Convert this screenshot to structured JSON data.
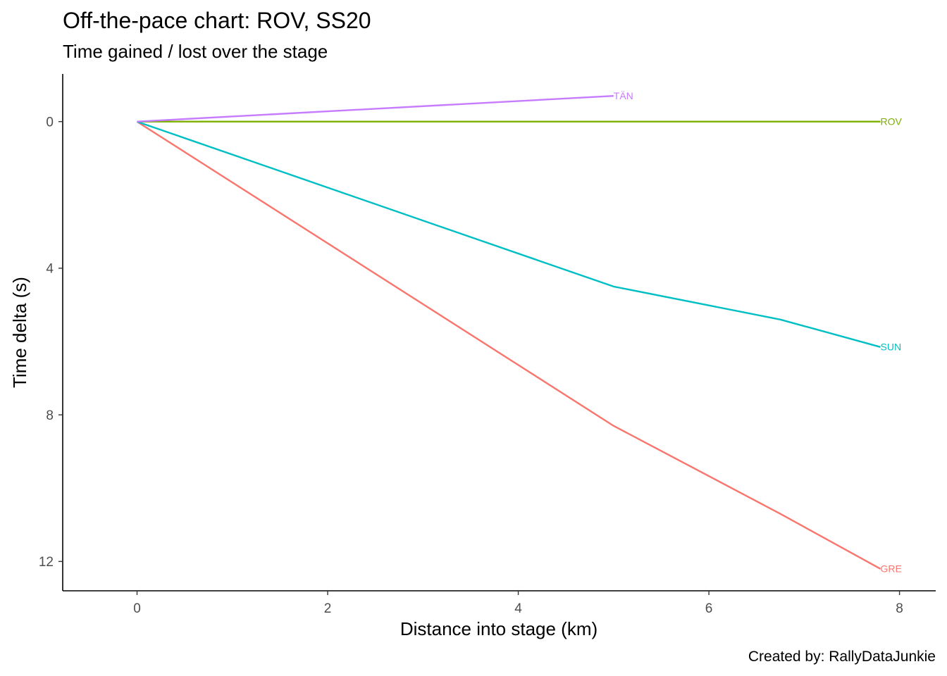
{
  "chart_data": {
    "type": "line",
    "title": "Off-the-pace chart: ROV, SS20",
    "subtitle": "Time gained / lost over the stage",
    "caption": "Created by: RallyDataJunkie",
    "xlabel": "Distance into stage (km)",
    "ylabel": "Time delta (s)",
    "xlim": [
      -0.78,
      8.38
    ],
    "ylim": [
      -1.3,
      12.8
    ],
    "y_reversed": true,
    "x_ticks": [
      0,
      2,
      4,
      6,
      8
    ],
    "y_ticks": [
      0,
      4,
      8,
      12
    ],
    "grid": false,
    "legend": "none",
    "series": [
      {
        "name": "GRE",
        "color": "#F8766D",
        "x": [
          0,
          5.0,
          6.75,
          7.8
        ],
        "y": [
          0,
          8.3,
          10.7,
          12.2
        ]
      },
      {
        "name": "ROV",
        "color": "#7CAE00",
        "x": [
          0,
          5.0,
          6.75,
          7.8
        ],
        "y": [
          0,
          0,
          0,
          0
        ]
      },
      {
        "name": "SUN",
        "color": "#00BFC4",
        "x": [
          0,
          5.0,
          6.75,
          7.8
        ],
        "y": [
          0,
          4.5,
          5.4,
          6.15
        ]
      },
      {
        "name": "TÄN",
        "color": "#C77CFF",
        "x": [
          0,
          5.0
        ],
        "y": [
          0,
          -0.7
        ]
      }
    ]
  }
}
